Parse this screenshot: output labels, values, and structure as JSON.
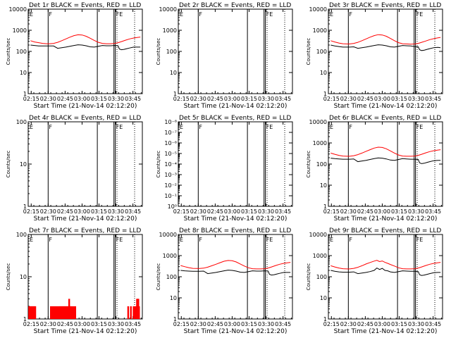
{
  "colors": {
    "events": "#000000",
    "lld": "#ff0000",
    "background": "#ffffff"
  },
  "chart_data": [
    {
      "type": "line",
      "title": "Det 1r BLACK = Events, RED = LLD",
      "xlabel": "Start Time (21-Nov-14 02:12:20)",
      "ylabel": "Counts/sec",
      "yscale": "log",
      "ylim": [
        1,
        10000
      ],
      "ytick_labels": [
        "1",
        "10",
        "100",
        "1000",
        "10000"
      ],
      "xtick_labels": [
        "02:15",
        "02:30",
        "02:45",
        "03:00",
        "03:15",
        "03:30",
        "03:45"
      ],
      "xlim": [
        2.2056,
        3.8889
      ],
      "flag_labels": [
        "E",
        "F",
        "FE"
      ],
      "series": [
        {
          "color": "#000000",
          "x": [
            2.24,
            2.3,
            2.36,
            2.42,
            2.48,
            2.52,
            2.58,
            2.64,
            2.7,
            2.76,
            2.82,
            2.88,
            2.94,
            3.0,
            3.06,
            3.12,
            3.18,
            3.24,
            3.3,
            3.36,
            3.42,
            3.48,
            3.53,
            3.55,
            3.58,
            3.62,
            3.66,
            3.7,
            3.76,
            3.82,
            3.86
          ],
          "y": [
            200,
            190,
            180,
            180,
            180,
            180,
            180,
            140,
            150,
            160,
            175,
            190,
            205,
            200,
            185,
            165,
            160,
            175,
            190,
            185,
            185,
            190,
            185,
            130,
            120,
            125,
            135,
            145,
            160,
            160,
            160
          ]
        },
        {
          "color": "#ff0000",
          "x": [
            2.24,
            2.3,
            2.36,
            2.42,
            2.48,
            2.52,
            2.58,
            2.64,
            2.7,
            2.76,
            2.82,
            2.88,
            2.94,
            3.0,
            3.06,
            3.12,
            3.18,
            3.24,
            3.3,
            3.36,
            3.42,
            3.48,
            3.53,
            3.58,
            3.64,
            3.7,
            3.76,
            3.82,
            3.86
          ],
          "y": [
            320,
            280,
            260,
            240,
            230,
            230,
            240,
            270,
            320,
            390,
            470,
            560,
            610,
            600,
            520,
            420,
            330,
            270,
            240,
            230,
            230,
            240,
            260,
            290,
            340,
            390,
            430,
            460,
            480
          ]
        }
      ]
    },
    {
      "type": "line",
      "title": "Det 2r BLACK = Events, RED = LLD",
      "xlabel": "Start Time (21-Nov-14 02:12:20)",
      "ylabel": "Counts/sec",
      "yscale": "log",
      "ylim": [
        1,
        10000
      ],
      "ytick_labels": [
        "1",
        "10",
        "100",
        "1000",
        "10000"
      ],
      "xtick_labels": [
        "02:15",
        "02:30",
        "02:45",
        "03:00",
        "03:15",
        "03:30",
        "03:45"
      ],
      "xlim": [
        2.2056,
        3.8889
      ],
      "flag_labels": [
        "E",
        "F",
        "FE"
      ],
      "series": []
    },
    {
      "type": "line",
      "title": "Det 3r BLACK = Events, RED = LLD",
      "xlabel": "Start Time (21-Nov-14 02:12:20)",
      "ylabel": "Counts/sec",
      "yscale": "log",
      "ylim": [
        1,
        10000
      ],
      "ytick_labels": [
        "1",
        "10",
        "100",
        "1000",
        "10000"
      ],
      "xtick_labels": [
        "02:15",
        "02:30",
        "02:45",
        "03:00",
        "03:15",
        "03:30",
        "03:45"
      ],
      "xlim": [
        2.2056,
        3.8889
      ],
      "flag_labels": [
        "E",
        "F",
        "FE"
      ],
      "series": [
        {
          "color": "#000000",
          "x": [
            2.24,
            2.3,
            2.36,
            2.42,
            2.48,
            2.52,
            2.58,
            2.64,
            2.7,
            2.76,
            2.82,
            2.88,
            2.94,
            3.0,
            3.06,
            3.12,
            3.18,
            3.24,
            3.3,
            3.36,
            3.42,
            3.48,
            3.53,
            3.55,
            3.58,
            3.62,
            3.66,
            3.7,
            3.76,
            3.82,
            3.86
          ],
          "y": [
            200,
            180,
            170,
            160,
            160,
            160,
            165,
            140,
            150,
            160,
            175,
            190,
            205,
            200,
            185,
            165,
            160,
            175,
            190,
            185,
            180,
            170,
            165,
            120,
            110,
            115,
            125,
            135,
            150,
            155,
            150
          ]
        },
        {
          "color": "#ff0000",
          "x": [
            2.24,
            2.3,
            2.36,
            2.42,
            2.48,
            2.52,
            2.58,
            2.64,
            2.7,
            2.76,
            2.82,
            2.88,
            2.94,
            3.0,
            3.06,
            3.12,
            3.18,
            3.24,
            3.3,
            3.36,
            3.42,
            3.48,
            3.53,
            3.58,
            3.64,
            3.7,
            3.76,
            3.82,
            3.86
          ],
          "y": [
            320,
            280,
            250,
            230,
            225,
            225,
            240,
            270,
            320,
            390,
            470,
            560,
            620,
            600,
            520,
            410,
            320,
            260,
            230,
            225,
            220,
            225,
            240,
            270,
            310,
            360,
            400,
            440,
            460
          ]
        }
      ]
    },
    {
      "type": "line",
      "title": "Det 4r BLACK = Events, RED = LLD",
      "xlabel": "Start Time (21-Nov-14 02:12:20)",
      "ylabel": "Counts/sec",
      "yscale": "log",
      "ylim": [
        1,
        100
      ],
      "ytick_labels": [
        "1",
        "10",
        "100"
      ],
      "xtick_labels": [
        "02:15",
        "02:30",
        "02:45",
        "03:00",
        "03:15",
        "03:30",
        "03:45"
      ],
      "xlim": [
        2.2056,
        3.8889
      ],
      "flag_labels": [
        "E",
        "F",
        "FE"
      ],
      "series": []
    },
    {
      "type": "line",
      "title": "Det 5r BLACK = Events, RED = LLD",
      "xlabel": "Start Time (21-Nov-14 02:12:20)",
      "ylabel": "Counts/sec",
      "yscale": "log",
      "ylim": [
        1,
        1e-08
      ],
      "ytick_labels": [
        "10⁰",
        "10⁻¹",
        "10⁻²",
        "10⁻³",
        "10⁻⁴",
        "10⁻⁵",
        "10⁻⁶",
        "10⁻⁷",
        "10⁻⁸"
      ],
      "xtick_labels": [
        "02:15",
        "02:30",
        "02:45",
        "03:00",
        "03:15",
        "03:30",
        "03:45"
      ],
      "xlim": [
        2.2056,
        3.8889
      ],
      "flag_labels": [
        "E",
        "F",
        "FE"
      ],
      "series": []
    },
    {
      "type": "line",
      "title": "Det 6r BLACK = Events, RED = LLD",
      "xlabel": "Start Time (21-Nov-14 02:12:20)",
      "ylabel": "Counts/sec",
      "yscale": "log",
      "ylim": [
        1,
        10000
      ],
      "ytick_labels": [
        "1",
        "10",
        "100",
        "1000",
        "10000"
      ],
      "xtick_labels": [
        "02:15",
        "02:30",
        "02:45",
        "03:00",
        "03:15",
        "03:30",
        "03:45"
      ],
      "xlim": [
        2.2056,
        3.8889
      ],
      "flag_labels": [
        "E",
        "F",
        "FE"
      ],
      "series": [
        {
          "color": "#000000",
          "x": [
            2.24,
            2.3,
            2.36,
            2.42,
            2.48,
            2.52,
            2.58,
            2.64,
            2.7,
            2.76,
            2.82,
            2.88,
            2.94,
            3.0,
            3.06,
            3.12,
            3.18,
            3.24,
            3.3,
            3.36,
            3.42,
            3.48,
            3.53,
            3.55,
            3.58,
            3.62,
            3.66,
            3.7,
            3.76,
            3.82,
            3.86
          ],
          "y": [
            190,
            180,
            175,
            170,
            170,
            170,
            175,
            130,
            140,
            150,
            165,
            180,
            195,
            190,
            175,
            155,
            150,
            165,
            180,
            175,
            170,
            170,
            165,
            115,
            105,
            110,
            120,
            130,
            145,
            150,
            150
          ]
        },
        {
          "color": "#ff0000",
          "x": [
            2.24,
            2.3,
            2.36,
            2.42,
            2.48,
            2.52,
            2.58,
            2.64,
            2.7,
            2.76,
            2.82,
            2.88,
            2.94,
            3.0,
            3.06,
            3.12,
            3.18,
            3.24,
            3.3,
            3.36,
            3.42,
            3.48,
            3.53,
            3.58,
            3.64,
            3.7,
            3.76,
            3.82,
            3.86
          ],
          "y": [
            330,
            290,
            260,
            240,
            235,
            235,
            250,
            280,
            330,
            400,
            480,
            570,
            630,
            610,
            530,
            420,
            330,
            270,
            240,
            235,
            235,
            240,
            260,
            290,
            340,
            390,
            430,
            460,
            480
          ]
        }
      ]
    },
    {
      "type": "line",
      "title": "Det 7r BLACK = Events, RED = LLD",
      "xlabel": "Start Time (21-Nov-14 02:12:20)",
      "ylabel": "Counts/sec",
      "yscale": "log",
      "ylim": [
        1,
        100
      ],
      "ytick_labels": [
        "1",
        "10",
        "100"
      ],
      "xtick_labels": [
        "02:15",
        "02:30",
        "02:45",
        "03:00",
        "03:15",
        "03:30",
        "03:45"
      ],
      "xlim": [
        2.2056,
        3.8889
      ],
      "flag_labels": [
        "E",
        "F",
        "FE"
      ],
      "series": [
        {
          "color": "#ff0000",
          "style": "spikes",
          "x": [
            2.22,
            2.23,
            2.24,
            2.25,
            2.26,
            2.27,
            2.28,
            2.29,
            2.3,
            2.31,
            2.54,
            2.56,
            2.58,
            2.6,
            2.62,
            2.64,
            2.66,
            2.67,
            2.68,
            2.69,
            2.7,
            2.71,
            2.72,
            2.73,
            2.74,
            2.75,
            2.76,
            2.77,
            2.78,
            2.79,
            2.8,
            2.81,
            2.82,
            2.83,
            2.84,
            2.86,
            2.88,
            2.9,
            3.68,
            3.72,
            3.76,
            3.78,
            3.8,
            3.81,
            3.82,
            3.83,
            3.84
          ],
          "y": [
            2,
            2,
            2,
            2,
            2,
            2,
            2,
            2,
            2,
            2,
            2,
            2,
            2,
            2,
            2,
            2,
            2,
            2,
            2,
            2,
            2,
            2,
            2,
            2,
            2,
            2,
            2,
            2,
            2,
            2,
            2,
            3,
            2,
            2,
            2,
            2,
            2,
            2,
            2,
            2,
            2,
            2,
            2,
            3,
            3,
            3,
            2
          ]
        }
      ]
    },
    {
      "type": "line",
      "title": "Det 8r BLACK = Events, RED = LLD",
      "xlabel": "Start Time (21-Nov-14 02:12:20)",
      "ylabel": "Counts/sec",
      "yscale": "log",
      "ylim": [
        1,
        10000
      ],
      "ytick_labels": [
        "1",
        "10",
        "100",
        "1000",
        "10000"
      ],
      "xtick_labels": [
        "02:15",
        "02:30",
        "02:45",
        "03:00",
        "03:15",
        "03:30",
        "03:45"
      ],
      "xlim": [
        2.2056,
        3.8889
      ],
      "flag_labels": [
        "E",
        "F",
        "FE"
      ],
      "series": [
        {
          "color": "#000000",
          "x": [
            2.24,
            2.3,
            2.36,
            2.42,
            2.48,
            2.52,
            2.58,
            2.64,
            2.7,
            2.76,
            2.82,
            2.88,
            2.94,
            3.0,
            3.06,
            3.12,
            3.18,
            3.24,
            3.3,
            3.36,
            3.42,
            3.48,
            3.53,
            3.55,
            3.58,
            3.62,
            3.66,
            3.7,
            3.76,
            3.82,
            3.86
          ],
          "y": [
            200,
            190,
            185,
            180,
            180,
            180,
            185,
            140,
            150,
            160,
            175,
            190,
            205,
            200,
            185,
            165,
            160,
            175,
            190,
            185,
            185,
            190,
            185,
            130,
            120,
            125,
            135,
            145,
            160,
            160,
            160
          ]
        },
        {
          "color": "#ff0000",
          "x": [
            2.24,
            2.3,
            2.36,
            2.42,
            2.48,
            2.52,
            2.58,
            2.64,
            2.7,
            2.76,
            2.82,
            2.88,
            2.94,
            3.0,
            3.06,
            3.12,
            3.18,
            3.24,
            3.3,
            3.36,
            3.42,
            3.48,
            3.53,
            3.58,
            3.64,
            3.7,
            3.76,
            3.82,
            3.86
          ],
          "y": [
            340,
            300,
            270,
            250,
            245,
            245,
            255,
            285,
            330,
            390,
            460,
            540,
            590,
            570,
            500,
            400,
            320,
            265,
            240,
            235,
            235,
            240,
            260,
            290,
            340,
            390,
            430,
            460,
            480
          ]
        }
      ]
    },
    {
      "type": "line",
      "title": "Det 9r BLACK = Events, RED = LLD",
      "xlabel": "Start Time (21-Nov-14 02:12:20)",
      "ylabel": "Counts/sec",
      "yscale": "log",
      "ylim": [
        1,
        10000
      ],
      "ytick_labels": [
        "1",
        "10",
        "100",
        "1000",
        "10000"
      ],
      "xtick_labels": [
        "02:15",
        "02:30",
        "02:45",
        "03:00",
        "03:15",
        "03:30",
        "03:45"
      ],
      "xlim": [
        2.2056,
        3.8889
      ],
      "flag_labels": [
        "E",
        "F",
        "FE"
      ],
      "series": [
        {
          "color": "#000000",
          "x": [
            2.24,
            2.3,
            2.36,
            2.42,
            2.48,
            2.52,
            2.58,
            2.64,
            2.7,
            2.76,
            2.82,
            2.88,
            2.92,
            2.96,
            3.0,
            3.04,
            3.08,
            3.12,
            3.18,
            3.24,
            3.3,
            3.36,
            3.42,
            3.48,
            3.53,
            3.55,
            3.58,
            3.62,
            3.66,
            3.7,
            3.76,
            3.82,
            3.86
          ],
          "y": [
            200,
            180,
            170,
            165,
            165,
            165,
            170,
            140,
            150,
            160,
            175,
            200,
            260,
            220,
            250,
            200,
            190,
            170,
            160,
            175,
            190,
            185,
            180,
            180,
            175,
            125,
            115,
            120,
            130,
            140,
            155,
            160,
            160
          ]
        },
        {
          "color": "#ff0000",
          "x": [
            2.24,
            2.3,
            2.36,
            2.42,
            2.48,
            2.52,
            2.58,
            2.64,
            2.7,
            2.76,
            2.82,
            2.88,
            2.92,
            2.96,
            3.0,
            3.04,
            3.08,
            3.12,
            3.18,
            3.24,
            3.3,
            3.36,
            3.42,
            3.48,
            3.53,
            3.58,
            3.64,
            3.7,
            3.76,
            3.82,
            3.86
          ],
          "y": [
            330,
            290,
            260,
            240,
            235,
            235,
            250,
            280,
            330,
            400,
            470,
            550,
            600,
            520,
            560,
            480,
            430,
            380,
            320,
            265,
            240,
            235,
            235,
            240,
            260,
            290,
            340,
            390,
            430,
            460,
            480
          ]
        }
      ]
    }
  ]
}
